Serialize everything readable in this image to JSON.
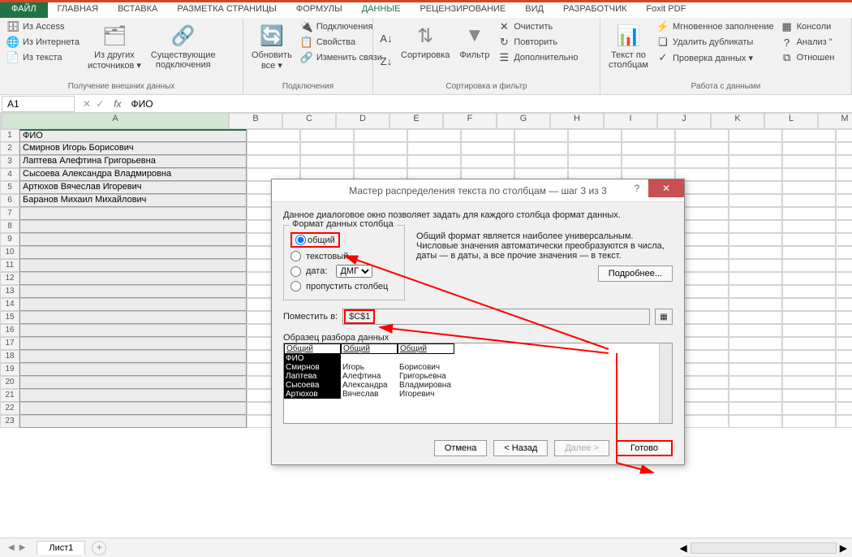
{
  "ribbon": {
    "file": "ФАЙЛ",
    "tabs": [
      "ГЛАВНАЯ",
      "ВСТАВКА",
      "РАЗМЕТКА СТРАНИЦЫ",
      "ФОРМУЛЫ",
      "ДАННЫЕ",
      "РЕЦЕНЗИРОВАНИЕ",
      "ВИД",
      "РАЗРАБОТЧИК",
      "Foxit PDF"
    ],
    "active_tab": "ДАННЫЕ",
    "group1": {
      "label": "Получение внешних данных",
      "items": [
        "Из Access",
        "Из Интернета",
        "Из текста"
      ],
      "big1": "Из других\nисточников ▾",
      "big2": "Существующие\nподключения"
    },
    "group2": {
      "label": "Подключения",
      "big": "Обновить\nвсе ▾",
      "items": [
        "Подключения",
        "Свойства",
        "Изменить связи"
      ]
    },
    "group3": {
      "label": "Сортировка и фильтр",
      "sort": "Сортировка",
      "filter": "Фильтр",
      "items": [
        "Очистить",
        "Повторить",
        "Дополнительно"
      ]
    },
    "group4": {
      "label": "Работа с данными",
      "big": "Текст по\nстолбцам",
      "items": [
        "Мгновенное заполнение",
        "Удалить дубликаты",
        "Проверка данных ▾"
      ],
      "items2": [
        "Консоли",
        "Анализ \"",
        "Отношен"
      ]
    }
  },
  "namebox": "A1",
  "formula": "ФИО",
  "columns": [
    "A",
    "B",
    "C",
    "D",
    "E",
    "F",
    "G",
    "H",
    "I",
    "J",
    "K",
    "L",
    "M"
  ],
  "rows": [
    "ФИО",
    "Смирнов Игорь Борисович",
    "Лаптева Алефтина Григорьевна",
    "Сысоева Александра Владмировна",
    "Артюхов Вячеслав Игоревич",
    "Баранов Михаил Михайлович"
  ],
  "row_count": 23,
  "sheet": {
    "name": "Лист1"
  },
  "dialog": {
    "title": "Мастер распределения текста по столбцам — шаг 3 из 3",
    "desc": "Данное диалоговое окно позволяет задать для каждого столбца формат данных.",
    "fieldset": "Формат данных столбца",
    "radios": {
      "general": "общий",
      "text": "текстовый",
      "date": "дата:",
      "skip": "пропустить столбец"
    },
    "date_fmt": "ДМГ",
    "hint": "Общий формат является наиболее универсальным. Числовые значения автоматически преобразуются в числа, даты — в даты, а все прочие значения — в текст.",
    "more": "Подробнее...",
    "dest_label": "Поместить в:",
    "dest_value": "$C$1",
    "preview_label": "Образец разбора данных",
    "preview_header": [
      "Общий",
      "Общий",
      "Общий"
    ],
    "preview_rows": [
      [
        "ФИО",
        "",
        ""
      ],
      [
        "Смирнов",
        "Игорь",
        "Борисович"
      ],
      [
        "Лаптева",
        "Алефтина",
        "Григорьевна"
      ],
      [
        "Сысоева",
        "Александра",
        "Владмировна"
      ],
      [
        "Артюхов",
        "Вячеслав",
        "Игоревич"
      ]
    ],
    "buttons": {
      "cancel": "Отмена",
      "back": "< Назад",
      "next": "Далее >",
      "finish": "Готово"
    }
  },
  "annotation": {
    "color": "#ff0000"
  }
}
